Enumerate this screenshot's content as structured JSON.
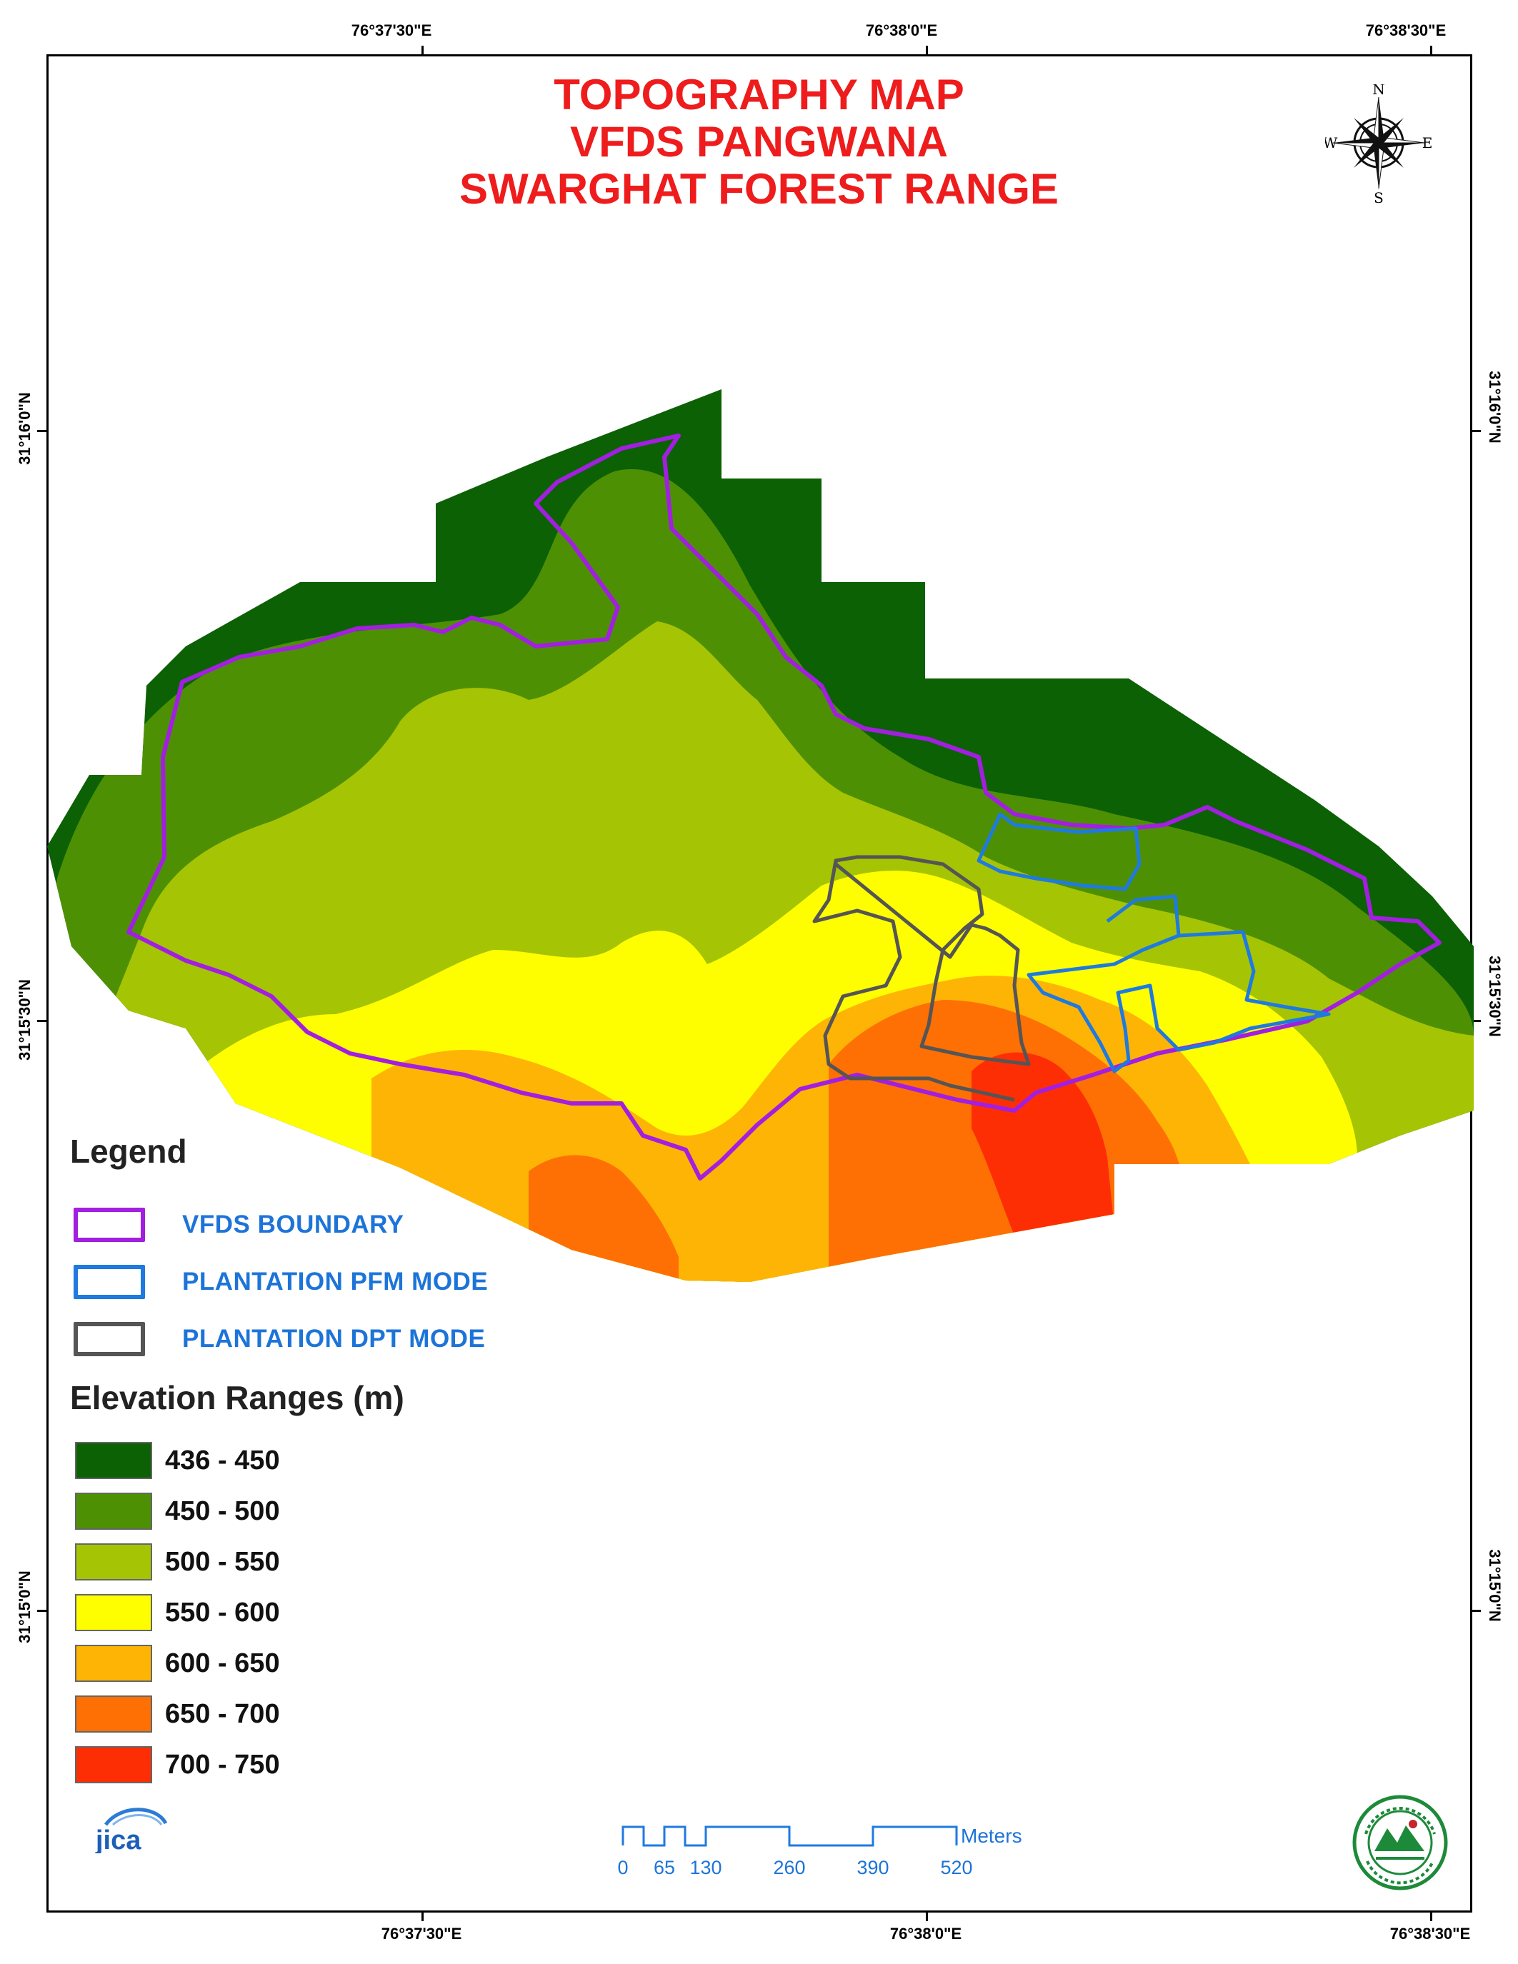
{
  "title": {
    "line1": "TOPOGRAPHY MAP",
    "line2": "VFDS PANGWANA",
    "line3": "SWARGHAT FOREST RANGE"
  },
  "coordinates": {
    "top": [
      "76°37'30\"E",
      "76°38'0\"E",
      "76°38'30\"E"
    ],
    "bottom": [
      "76°37'30\"E",
      "76°38'0\"E",
      "76°38'30\"E"
    ],
    "left": [
      "31°16'0\"N",
      "31°15'30\"N",
      "31°15'0\"N"
    ],
    "right": [
      "31°16'0\"N",
      "31°15'30\"N",
      "31°15'0\"N"
    ]
  },
  "compass": {
    "n": "N",
    "s": "S",
    "e": "E",
    "w": "W"
  },
  "legend": {
    "title": "Legend",
    "lines": [
      {
        "label": "VFDS BOUNDARY",
        "color": "#a21fe0"
      },
      {
        "label": "PLANTATION PFM MODE",
        "color": "#1f7ae0"
      },
      {
        "label": "PLANTATION DPT MODE",
        "color": "#555555"
      }
    ]
  },
  "elevation": {
    "title": "Elevation Ranges (m)",
    "ranges": [
      {
        "label": "436 - 450",
        "color": "#0b6104"
      },
      {
        "label": "450 - 500",
        "color": "#4e9004"
      },
      {
        "label": "500 - 550",
        "color": "#a5c404"
      },
      {
        "label": "550 - 600",
        "color": "#fefe00"
      },
      {
        "label": "600 - 650",
        "color": "#feb404"
      },
      {
        "label": "650 - 700",
        "color": "#fe7004"
      },
      {
        "label": "700 - 750",
        "color": "#fe2e04"
      }
    ]
  },
  "scale_bar": {
    "ticks": [
      "0",
      "65",
      "130",
      "260",
      "390",
      "520"
    ],
    "units": "Meters"
  },
  "logos": {
    "jica": "jica-logo",
    "seal": "forest-department-seal"
  }
}
